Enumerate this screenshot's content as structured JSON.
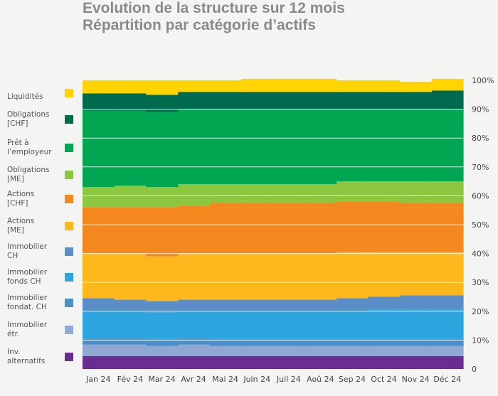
{
  "title_line1": "Evolution de la structure sur 12 mois",
  "title_line2": "Répartition par catégorie d’actifs",
  "chart_data": {
    "type": "area",
    "stacked": true,
    "categories": [
      "Jan 24",
      "Fév 24",
      "Mar 24",
      "Avr 24",
      "Mai 24",
      "Juin 24",
      "Juil 24",
      "Aoû 24",
      "Sep 24",
      "Oct 24",
      "Nov 24",
      "Déc 24"
    ],
    "ylim": [
      0,
      100
    ],
    "y_ticks": [
      "0",
      "10%",
      "20%",
      "30%",
      "40%",
      "50%",
      "60%",
      "70%",
      "80%",
      "90%",
      "100%"
    ],
    "series": [
      {
        "name": "Inv.\nalternatifs",
        "color": "#6a2d91",
        "values": [
          4.5,
          4.5,
          4.5,
          4.5,
          4.5,
          4.5,
          4.5,
          4.5,
          4.5,
          4.5,
          4.5,
          4.5
        ]
      },
      {
        "name": "Immobilier\nétr.",
        "color": "#8fa8d4",
        "values": [
          4,
          4,
          3.5,
          4,
          3.5,
          3.5,
          3.5,
          3.5,
          3.5,
          3.5,
          3.5,
          3.5
        ]
      },
      {
        "name": "Immobilier\nfondat. CH",
        "color": "#4a8fc8",
        "values": [
          2,
          2,
          2,
          2,
          2,
          2,
          2,
          2,
          2,
          2,
          2,
          2
        ]
      },
      {
        "name": "Immobilier\nfonds CH",
        "color": "#2da6df",
        "values": [
          9.5,
          9.5,
          9.5,
          9.5,
          10,
          10,
          10,
          10,
          10,
          10.5,
          10.5,
          10.5
        ]
      },
      {
        "name": "Immobilier\nCH",
        "color": "#5b8ec6",
        "values": [
          4.5,
          4,
          4,
          4,
          4,
          4,
          4,
          4,
          4.5,
          4.5,
          5,
          5
        ]
      },
      {
        "name": "Actions\n[ME]",
        "color": "#ffb81c",
        "values": [
          15.5,
          16,
          15.5,
          16,
          16,
          16,
          16,
          16,
          16,
          15.5,
          15,
          15
        ]
      },
      {
        "name": "Actions\n[CHF]",
        "color": "#f5871f",
        "values": [
          16,
          16,
          17,
          16.5,
          17.5,
          17.5,
          17.5,
          17.5,
          17.5,
          17.5,
          17,
          17
        ]
      },
      {
        "name": "Obligations\n[ME]",
        "color": "#8dc63f",
        "values": [
          7,
          7.5,
          7,
          7.5,
          6.5,
          6.5,
          6.5,
          6.5,
          7,
          7,
          7.5,
          7.5
        ]
      },
      {
        "name": "Prêt à\nl’employeur",
        "color": "#00a651",
        "values": [
          26.5,
          26,
          26,
          26,
          26,
          26,
          26,
          26,
          25,
          25,
          25,
          25
        ]
      },
      {
        "name": "Obligations\n[CHF]",
        "color": "#006a4e",
        "values": [
          6,
          6,
          6,
          6,
          6,
          6,
          6,
          6,
          6,
          6,
          6,
          6.5
        ]
      },
      {
        "name": "Liquidités",
        "color": "#ffd400",
        "values": [
          4.5,
          4.5,
          5,
          4,
          4,
          4.5,
          4.5,
          4.5,
          4,
          4,
          3.5,
          4
        ]
      }
    ]
  }
}
